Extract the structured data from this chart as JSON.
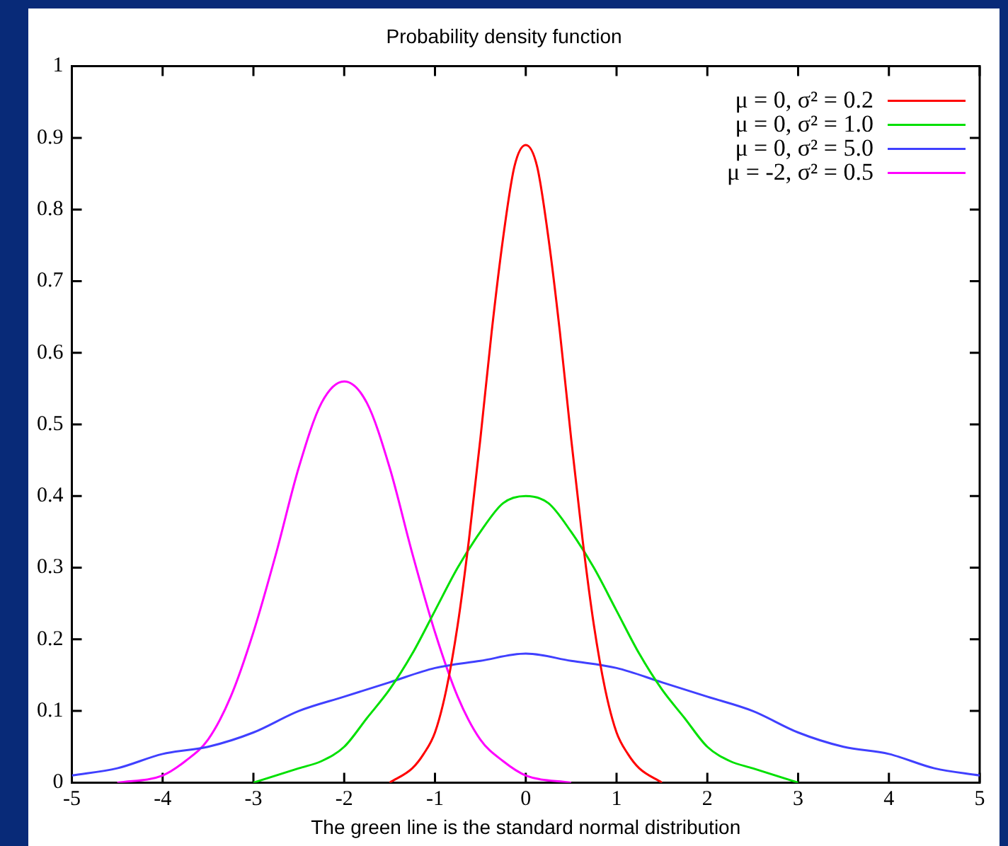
{
  "chart_data": {
    "type": "line",
    "title": "Probability density function",
    "xlabel": "The green line is the standard normal distribution",
    "xlim": [
      -5,
      5
    ],
    "xticks": [
      -5,
      -4,
      -3,
      -2,
      -1,
      0,
      1,
      2,
      3,
      4,
      5
    ],
    "ylim": [
      0,
      1
    ],
    "yticks": [
      0,
      0.1,
      0.2,
      0.3,
      0.4,
      0.5,
      0.6,
      0.7,
      0.8,
      0.9,
      1
    ],
    "legend": "top right",
    "marker": "none",
    "line_style": "solid",
    "series": [
      {
        "name": "μ = 0, σ² = 0.2",
        "color": "#ff0000",
        "x": [
          -1.5,
          -1.25,
          -1.125,
          -1,
          -0.875,
          -0.75,
          -0.625,
          -0.5,
          -0.375,
          -0.25,
          -0.125,
          0,
          0.125,
          0.25,
          0.375,
          0.5,
          0.625,
          0.75,
          0.875,
          1,
          1.125,
          1.25,
          1.5
        ],
        "values": [
          0,
          0.02,
          0.04,
          0.07,
          0.13,
          0.22,
          0.34,
          0.48,
          0.63,
          0.76,
          0.86,
          0.89,
          0.86,
          0.76,
          0.63,
          0.48,
          0.34,
          0.22,
          0.13,
          0.07,
          0.04,
          0.02,
          0
        ]
      },
      {
        "name": "μ = 0, σ² = 1.0",
        "color": "#00e000",
        "x": [
          -3,
          -2.5,
          -2.25,
          -2,
          -1.75,
          -1.5,
          -1.25,
          -1,
          -0.75,
          -0.5,
          -0.25,
          0,
          0.25,
          0.5,
          0.75,
          1,
          1.25,
          1.5,
          1.75,
          2,
          2.25,
          2.5,
          3
        ],
        "values": [
          0,
          0.02,
          0.03,
          0.05,
          0.09,
          0.13,
          0.18,
          0.24,
          0.3,
          0.35,
          0.39,
          0.4,
          0.39,
          0.35,
          0.3,
          0.24,
          0.18,
          0.13,
          0.09,
          0.05,
          0.03,
          0.02,
          0
        ]
      },
      {
        "name": "μ = 0, σ² = 5.0",
        "color": "#4040ff",
        "x": [
          -5,
          -4.5,
          -4,
          -3.5,
          -3,
          -2.5,
          -2,
          -1.5,
          -1,
          -0.5,
          0,
          0.5,
          1,
          1.5,
          2,
          2.5,
          3,
          3.5,
          4,
          4.5,
          5
        ],
        "values": [
          0.01,
          0.02,
          0.04,
          0.05,
          0.07,
          0.1,
          0.12,
          0.14,
          0.16,
          0.17,
          0.18,
          0.17,
          0.16,
          0.14,
          0.12,
          0.1,
          0.07,
          0.05,
          0.04,
          0.02,
          0.01
        ]
      },
      {
        "name": "μ = -2, σ² = 0.5",
        "color": "#ff00ff",
        "x": [
          -4.5,
          -4,
          -3.75,
          -3.5,
          -3.25,
          -3,
          -2.75,
          -2.5,
          -2.25,
          -2,
          -1.75,
          -1.5,
          -1.25,
          -1,
          -0.75,
          -0.5,
          -0.25,
          0,
          0.5
        ],
        "values": [
          0,
          0.01,
          0.03,
          0.06,
          0.12,
          0.21,
          0.32,
          0.44,
          0.53,
          0.56,
          0.53,
          0.44,
          0.32,
          0.21,
          0.12,
          0.06,
          0.03,
          0.01,
          0
        ]
      }
    ]
  }
}
